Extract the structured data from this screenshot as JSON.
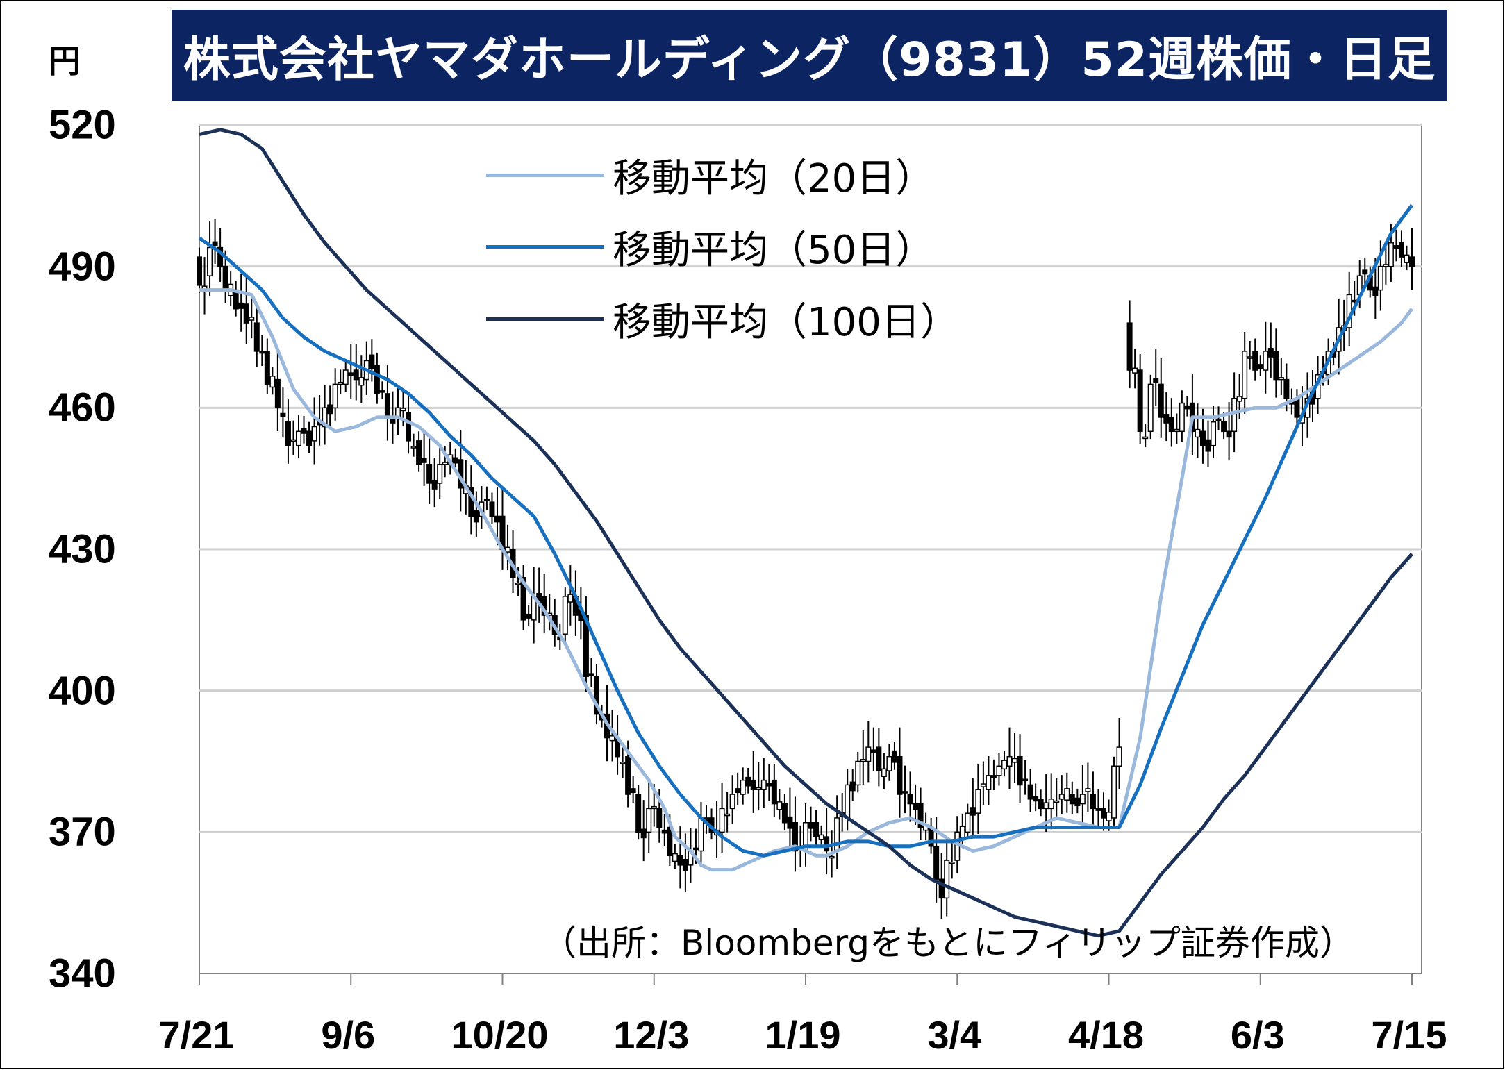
{
  "title": "株式会社ヤマダホールディング（9831）52週株価・日足",
  "unit": "円",
  "source": "（出所：Bloombergをもとにフィリップ証券作成）",
  "colors": {
    "title_bg": "#0d2462",
    "ma20": "#9ab7dc",
    "ma50": "#1670bf",
    "ma100": "#1c3158",
    "grid": "#d0d0d0",
    "candle": "#000000"
  },
  "legend": [
    {
      "label": "移動平均（20日）",
      "color": "#9ab7dc"
    },
    {
      "label": "移動平均（50日）",
      "color": "#1670bf"
    },
    {
      "label": "移動平均（100日）",
      "color": "#1c3158"
    }
  ],
  "chart_data": {
    "type": "candlestick",
    "title": "株式会社ヤマダホールディング（9831）52週株価・日足",
    "ylabel": "円",
    "ylim": [
      340,
      520
    ],
    "yticks": [
      "520",
      "490",
      "460",
      "430",
      "400",
      "370",
      "340"
    ],
    "xticks": [
      "7/21",
      "9/6",
      "10/20",
      "12/3",
      "1/19",
      "3/4",
      "4/18",
      "6/3",
      "7/15"
    ],
    "grid": true,
    "legend_position": "top-center",
    "candles_seed": [
      [
        0,
        492,
        486
      ],
      [
        2,
        488,
        494
      ],
      [
        4,
        494,
        490
      ],
      [
        5,
        490,
        485
      ],
      [
        7,
        485,
        481
      ],
      [
        9,
        482,
        478
      ],
      [
        11,
        478,
        472
      ],
      [
        13,
        472,
        465
      ],
      [
        15,
        466,
        460
      ],
      [
        17,
        457,
        452
      ],
      [
        19,
        452,
        455
      ],
      [
        21,
        455,
        452
      ],
      [
        22,
        453,
        456
      ],
      [
        24,
        456,
        460
      ],
      [
        26,
        460,
        465
      ],
      [
        28,
        465,
        468
      ],
      [
        30,
        468,
        466
      ],
      [
        32,
        466,
        470
      ],
      [
        34,
        469,
        463
      ],
      [
        36,
        463,
        458
      ],
      [
        38,
        458,
        460
      ],
      [
        40,
        459,
        453
      ],
      [
        42,
        453,
        448
      ],
      [
        44,
        448,
        444
      ],
      [
        46,
        444,
        448
      ],
      [
        48,
        448,
        450
      ],
      [
        50,
        449,
        443
      ],
      [
        52,
        443,
        437
      ],
      [
        54,
        437,
        440
      ],
      [
        56,
        440,
        437
      ],
      [
        58,
        437,
        430
      ],
      [
        60,
        430,
        424
      ],
      [
        62,
        424,
        415
      ],
      [
        64,
        415,
        420
      ],
      [
        66,
        420,
        416
      ],
      [
        68,
        416,
        412
      ],
      [
        70,
        412,
        420
      ],
      [
        72,
        420,
        416
      ],
      [
        74,
        416,
        403
      ],
      [
        76,
        403,
        395
      ],
      [
        78,
        395,
        390
      ],
      [
        80,
        390,
        386
      ],
      [
        82,
        386,
        378
      ],
      [
        84,
        378,
        370
      ],
      [
        86,
        370,
        375
      ],
      [
        88,
        375,
        371
      ],
      [
        90,
        371,
        365
      ],
      [
        92,
        365,
        363
      ],
      [
        94,
        363,
        366
      ],
      [
        96,
        366,
        373
      ],
      [
        98,
        373,
        370
      ],
      [
        100,
        370,
        375
      ],
      [
        102,
        375,
        378
      ],
      [
        104,
        378,
        381
      ],
      [
        106,
        381,
        379
      ],
      [
        108,
        379,
        381
      ],
      [
        110,
        381,
        376
      ],
      [
        112,
        376,
        372
      ],
      [
        114,
        372,
        366
      ],
      [
        116,
        366,
        372
      ],
      [
        118,
        372,
        369
      ],
      [
        120,
        369,
        366
      ],
      [
        122,
        366,
        373
      ],
      [
        124,
        373,
        380
      ],
      [
        126,
        380,
        385
      ],
      [
        128,
        385,
        388
      ],
      [
        130,
        388,
        383
      ],
      [
        132,
        383,
        386
      ],
      [
        134,
        386,
        378
      ],
      [
        136,
        378,
        376
      ],
      [
        138,
        376,
        371
      ],
      [
        140,
        371,
        367
      ],
      [
        141,
        367,
        360
      ],
      [
        142,
        360,
        356
      ],
      [
        143,
        356,
        364
      ],
      [
        145,
        364,
        370
      ],
      [
        147,
        370,
        374
      ],
      [
        149,
        374,
        379
      ],
      [
        151,
        379,
        382
      ],
      [
        153,
        382,
        384
      ],
      [
        155,
        384,
        386
      ],
      [
        157,
        386,
        380
      ],
      [
        159,
        380,
        377
      ],
      [
        161,
        377,
        375
      ],
      [
        163,
        375,
        377
      ],
      [
        165,
        377,
        378
      ],
      [
        167,
        378,
        376
      ],
      [
        169,
        376,
        378
      ],
      [
        171,
        378,
        375
      ],
      [
        173,
        375,
        373
      ],
      [
        175,
        373,
        384
      ],
      [
        176,
        384,
        388
      ],
      [
        178,
        478,
        468
      ],
      [
        180,
        468,
        455
      ],
      [
        182,
        455,
        465
      ],
      [
        184,
        465,
        458
      ],
      [
        186,
        458,
        455
      ],
      [
        188,
        455,
        461
      ],
      [
        190,
        461,
        455
      ],
      [
        192,
        455,
        452
      ],
      [
        194,
        452,
        457
      ],
      [
        196,
        457,
        455
      ],
      [
        198,
        455,
        462
      ],
      [
        200,
        462,
        472
      ],
      [
        202,
        472,
        468
      ],
      [
        204,
        468,
        472
      ],
      [
        206,
        472,
        466
      ],
      [
        208,
        466,
        462
      ],
      [
        210,
        462,
        458
      ],
      [
        212,
        458,
        462
      ],
      [
        214,
        462,
        467
      ],
      [
        216,
        467,
        472
      ],
      [
        218,
        472,
        477
      ],
      [
        220,
        477,
        484
      ],
      [
        222,
        484,
        488
      ],
      [
        224,
        488,
        485
      ],
      [
        226,
        485,
        490
      ],
      [
        228,
        490,
        495
      ],
      [
        230,
        495,
        492
      ],
      [
        232,
        492,
        490
      ]
    ],
    "ma20": [
      [
        0,
        485
      ],
      [
        6,
        485
      ],
      [
        10,
        484
      ],
      [
        14,
        475
      ],
      [
        18,
        464
      ],
      [
        22,
        458
      ],
      [
        26,
        455
      ],
      [
        30,
        456
      ],
      [
        34,
        458
      ],
      [
        38,
        458
      ],
      [
        42,
        456
      ],
      [
        46,
        452
      ],
      [
        50,
        445
      ],
      [
        54,
        438
      ],
      [
        58,
        430
      ],
      [
        62,
        423
      ],
      [
        66,
        417
      ],
      [
        70,
        410
      ],
      [
        74,
        401
      ],
      [
        78,
        393
      ],
      [
        82,
        387
      ],
      [
        86,
        381
      ],
      [
        89,
        375
      ],
      [
        91,
        369
      ],
      [
        94,
        366
      ],
      [
        96,
        363
      ],
      [
        98,
        362
      ],
      [
        102,
        362
      ],
      [
        106,
        364
      ],
      [
        110,
        366
      ],
      [
        114,
        367
      ],
      [
        116,
        366
      ],
      [
        118,
        365
      ],
      [
        120,
        365
      ],
      [
        124,
        367
      ],
      [
        128,
        370
      ],
      [
        132,
        372
      ],
      [
        136,
        373
      ],
      [
        140,
        371
      ],
      [
        144,
        368
      ],
      [
        148,
        366
      ],
      [
        152,
        367
      ],
      [
        156,
        369
      ],
      [
        160,
        371
      ],
      [
        164,
        373
      ],
      [
        168,
        372
      ],
      [
        172,
        371
      ],
      [
        176,
        371
      ],
      [
        180,
        390
      ],
      [
        184,
        420
      ],
      [
        188,
        445
      ],
      [
        190,
        458
      ],
      [
        194,
        458
      ],
      [
        198,
        459
      ],
      [
        202,
        460
      ],
      [
        206,
        460
      ],
      [
        210,
        462
      ],
      [
        214,
        465
      ],
      [
        218,
        468
      ],
      [
        222,
        471
      ],
      [
        226,
        474
      ],
      [
        230,
        478
      ],
      [
        232,
        481
      ]
    ],
    "ma50": [
      [
        0,
        496
      ],
      [
        4,
        493
      ],
      [
        8,
        489
      ],
      [
        12,
        485
      ],
      [
        16,
        479
      ],
      [
        20,
        475
      ],
      [
        24,
        472
      ],
      [
        28,
        470
      ],
      [
        32,
        468
      ],
      [
        36,
        466
      ],
      [
        40,
        463
      ],
      [
        44,
        459
      ],
      [
        48,
        454
      ],
      [
        52,
        450
      ],
      [
        56,
        445
      ],
      [
        60,
        441
      ],
      [
        64,
        437
      ],
      [
        68,
        429
      ],
      [
        72,
        420
      ],
      [
        76,
        410
      ],
      [
        80,
        400
      ],
      [
        84,
        391
      ],
      [
        88,
        384
      ],
      [
        92,
        378
      ],
      [
        96,
        373
      ],
      [
        100,
        369
      ],
      [
        104,
        366
      ],
      [
        108,
        365
      ],
      [
        112,
        366
      ],
      [
        116,
        367
      ],
      [
        120,
        367
      ],
      [
        124,
        368
      ],
      [
        128,
        368
      ],
      [
        132,
        367
      ],
      [
        136,
        367
      ],
      [
        140,
        368
      ],
      [
        144,
        368
      ],
      [
        148,
        369
      ],
      [
        152,
        369
      ],
      [
        156,
        370
      ],
      [
        160,
        371
      ],
      [
        164,
        371
      ],
      [
        168,
        371
      ],
      [
        172,
        371
      ],
      [
        176,
        371
      ],
      [
        180,
        380
      ],
      [
        184,
        392
      ],
      [
        188,
        403
      ],
      [
        192,
        414
      ],
      [
        196,
        423
      ],
      [
        200,
        432
      ],
      [
        204,
        441
      ],
      [
        208,
        451
      ],
      [
        212,
        461
      ],
      [
        216,
        470
      ],
      [
        220,
        479
      ],
      [
        224,
        488
      ],
      [
        228,
        497
      ],
      [
        232,
        503
      ]
    ],
    "ma100": [
      [
        0,
        518
      ],
      [
        4,
        519
      ],
      [
        8,
        518
      ],
      [
        12,
        515
      ],
      [
        16,
        508
      ],
      [
        20,
        501
      ],
      [
        24,
        495
      ],
      [
        28,
        490
      ],
      [
        32,
        485
      ],
      [
        36,
        481
      ],
      [
        40,
        477
      ],
      [
        44,
        473
      ],
      [
        48,
        469
      ],
      [
        52,
        465
      ],
      [
        56,
        461
      ],
      [
        60,
        457
      ],
      [
        64,
        453
      ],
      [
        68,
        448
      ],
      [
        72,
        442
      ],
      [
        76,
        436
      ],
      [
        80,
        429
      ],
      [
        84,
        422
      ],
      [
        88,
        415
      ],
      [
        92,
        409
      ],
      [
        96,
        404
      ],
      [
        100,
        399
      ],
      [
        104,
        394
      ],
      [
        108,
        389
      ],
      [
        112,
        384
      ],
      [
        116,
        380
      ],
      [
        120,
        376
      ],
      [
        124,
        373
      ],
      [
        128,
        370
      ],
      [
        132,
        367
      ],
      [
        136,
        363
      ],
      [
        140,
        360
      ],
      [
        144,
        358
      ],
      [
        148,
        356
      ],
      [
        152,
        354
      ],
      [
        156,
        352
      ],
      [
        160,
        351
      ],
      [
        164,
        350
      ],
      [
        168,
        349
      ],
      [
        172,
        348
      ],
      [
        176,
        349
      ],
      [
        180,
        355
      ],
      [
        184,
        361
      ],
      [
        188,
        366
      ],
      [
        192,
        371
      ],
      [
        196,
        377
      ],
      [
        200,
        382
      ],
      [
        204,
        388
      ],
      [
        208,
        394
      ],
      [
        212,
        400
      ],
      [
        216,
        406
      ],
      [
        220,
        412
      ],
      [
        224,
        418
      ],
      [
        228,
        424
      ],
      [
        232,
        429
      ]
    ]
  }
}
